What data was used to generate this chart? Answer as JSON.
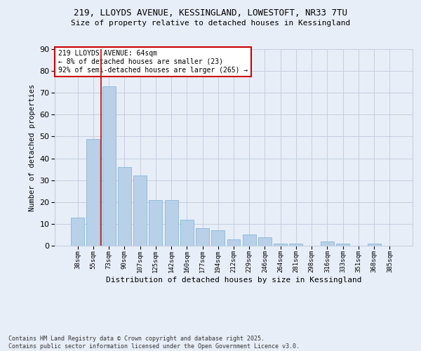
{
  "title1": "219, LLOYDS AVENUE, KESSINGLAND, LOWESTOFT, NR33 7TU",
  "title2": "Size of property relative to detached houses in Kessingland",
  "xlabel": "Distribution of detached houses by size in Kessingland",
  "ylabel": "Number of detached properties",
  "categories": [
    "38sqm",
    "55sqm",
    "73sqm",
    "90sqm",
    "107sqm",
    "125sqm",
    "142sqm",
    "160sqm",
    "177sqm",
    "194sqm",
    "212sqm",
    "229sqm",
    "246sqm",
    "264sqm",
    "281sqm",
    "298sqm",
    "316sqm",
    "333sqm",
    "351sqm",
    "368sqm",
    "385sqm"
  ],
  "values": [
    13,
    49,
    73,
    36,
    32,
    21,
    21,
    12,
    8,
    7,
    3,
    5,
    4,
    1,
    1,
    0,
    2,
    1,
    0,
    1,
    0
  ],
  "bar_color": "#b8d0e8",
  "bar_edge_color": "#7aafd4",
  "vline_x": 1.5,
  "annotation_text": "219 LLOYDS AVENUE: 64sqm\n← 8% of detached houses are smaller (23)\n92% of semi-detached houses are larger (265) →",
  "annotation_box_color": "#ffffff",
  "annotation_box_edge": "#cc0000",
  "vline_color": "#cc0000",
  "background_color": "#e8eef8",
  "grid_color": "#c5cfe0",
  "footer": "Contains HM Land Registry data © Crown copyright and database right 2025.\nContains public sector information licensed under the Open Government Licence v3.0.",
  "ylim": [
    0,
    90
  ],
  "yticks": [
    0,
    10,
    20,
    30,
    40,
    50,
    60,
    70,
    80,
    90
  ]
}
